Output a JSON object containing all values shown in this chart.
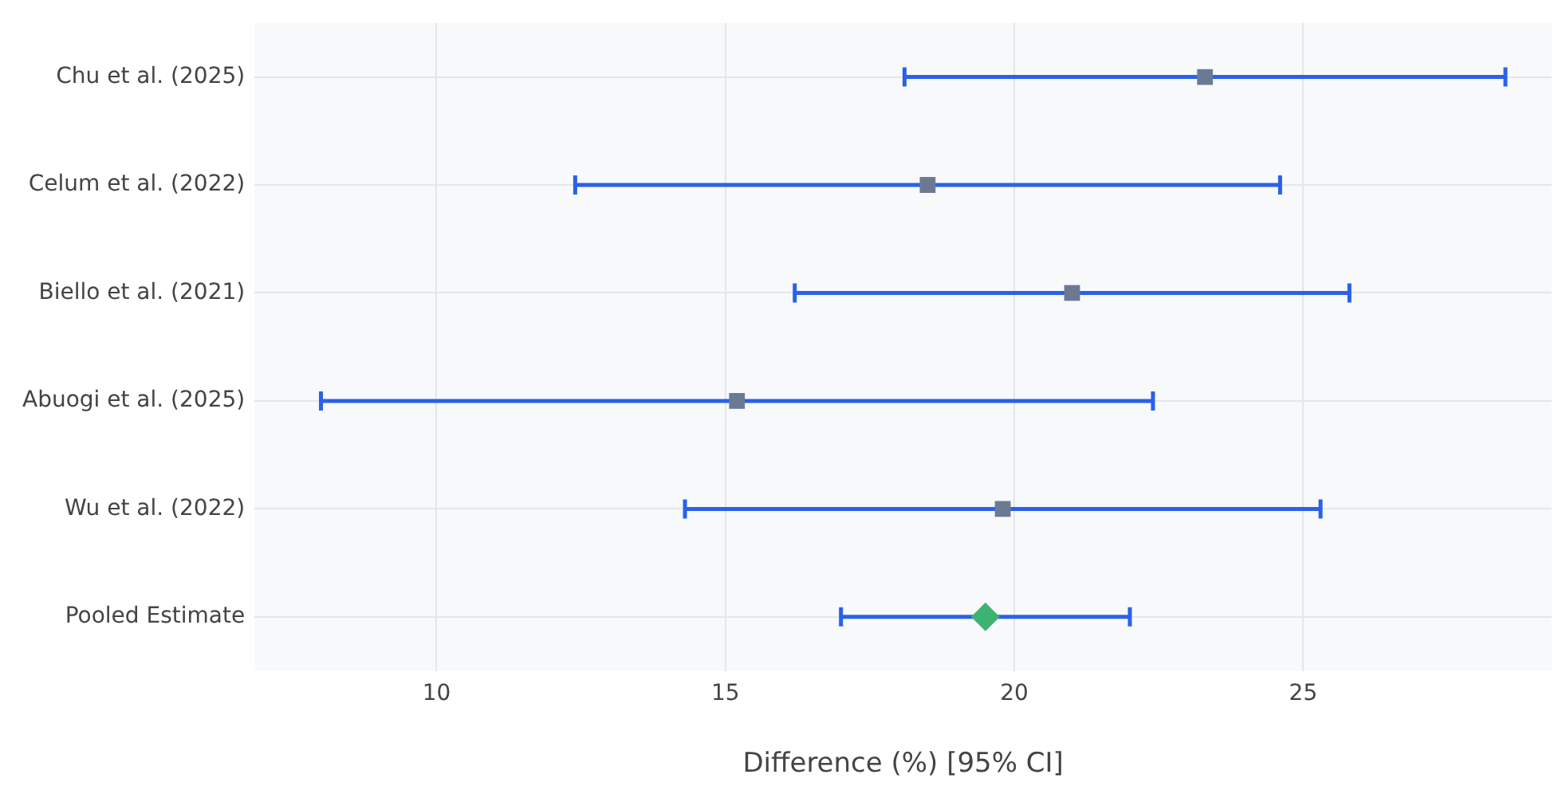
{
  "chart_data": {
    "type": "scatter",
    "orientation": "horizontal",
    "xlabel": "Difference (%) [95% CI]",
    "categories": [
      "Chu et al. (2025)",
      "Celum et al. (2022)",
      "Biello et al. (2021)",
      "Abuogi et al. (2025)",
      "Wu et al. (2022)",
      "Pooled Estimate"
    ],
    "series": [
      {
        "color": "#6b7a92",
        "marker": "square",
        "values": [
          23.3,
          18.5,
          21.0,
          15.2,
          19.8,
          null
        ],
        "errors": [
          [
            18.1,
            28.5
          ],
          [
            12.4,
            24.6
          ],
          [
            16.2,
            25.8
          ],
          [
            8.0,
            22.4
          ],
          [
            14.3,
            25.3
          ],
          null
        ]
      },
      {
        "color": "#3cb371",
        "marker": "diamond",
        "values": [
          null,
          null,
          null,
          null,
          null,
          19.5
        ],
        "errors": [
          null,
          null,
          null,
          null,
          null,
          [
            17.0,
            22.0
          ]
        ]
      }
    ],
    "xlim": [
      6.85,
      29.3
    ],
    "xticks": [
      10,
      15,
      20,
      25
    ],
    "grid": true,
    "legend": false
  }
}
